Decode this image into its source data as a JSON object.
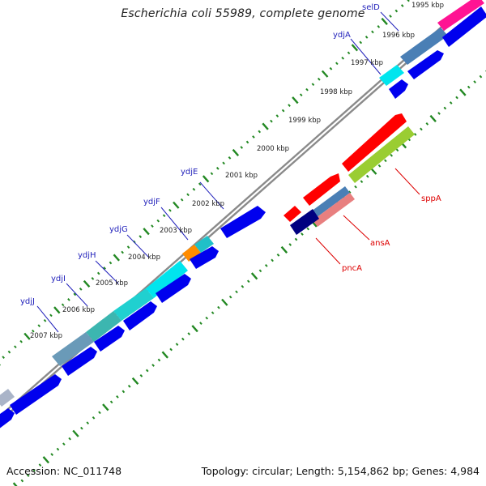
{
  "title": "Escherichia coli 55989, complete genome",
  "footer": {
    "accession": "Accession: NC_011748",
    "summary": "Topology: circular; Length: 5,154,862 bp; Genes: 4,984"
  },
  "colors": {
    "forward_gene": "#0000ee",
    "gene_label_forward": "#2222bb",
    "gene_label_reverse": "#dd0000",
    "backbone": "#8c8c8c",
    "tick": "#228822",
    "cyan": "#00e5ee",
    "teal": "#5bb3b3",
    "orange": "#ff8c00",
    "magenta": "#ff1493",
    "red": "#ff0000",
    "navy": "#000080",
    "yellowgreen": "#9acd32",
    "salmon": "#e87f7f"
  },
  "scale_labels": [
    "1995 kbp",
    "1996 kbp",
    "1997 kbp",
    "1998 kbp",
    "1999 kbp",
    "2000 kbp",
    "2001 kbp",
    "2002 kbp",
    "2003 kbp",
    "2004 kbp",
    "2005 kbp",
    "2006 kbp",
    "2007 kbp"
  ],
  "forward_labels": [
    "selD",
    "ydjA",
    "ydjE",
    "ydjF",
    "ydjG",
    "ydjH",
    "ydjI",
    "ydjJ"
  ],
  "reverse_labels": [
    "sppA",
    "ansA",
    "pncA"
  ]
}
